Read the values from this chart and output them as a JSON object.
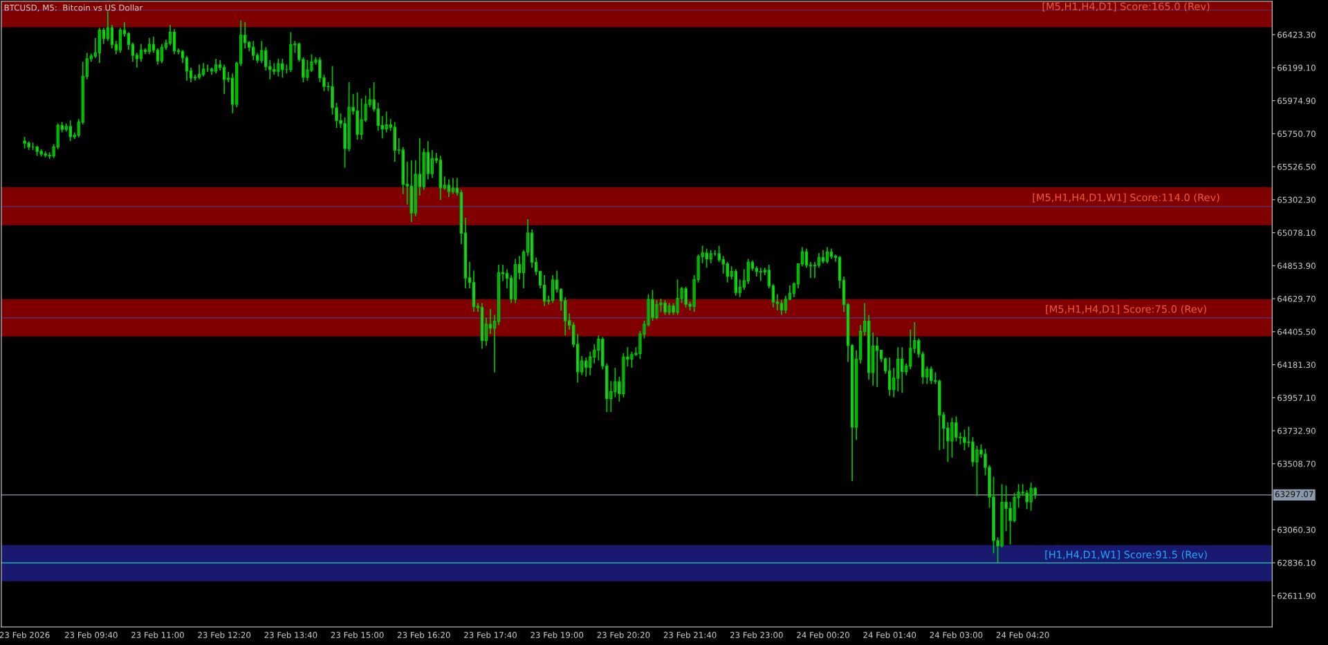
{
  "chart_data": {
    "type": "candlestick",
    "title": "BTCUSD, M5:  Bitcoin vs US Dollar",
    "x": [
      "2026-02-23T08:20",
      "2026-02-23T08:25",
      "2026-02-23T08:30",
      "2026-02-23T08:35",
      "2026-02-23T08:40",
      "2026-02-23T08:45",
      "2026-02-23T08:50",
      "2026-02-23T08:55",
      "2026-02-23T09:00",
      "2026-02-23T09:05",
      "2026-02-23T09:10",
      "2026-02-23T09:15",
      "2026-02-23T09:20",
      "2026-02-23T09:25",
      "2026-02-23T09:30",
      "2026-02-23T09:35",
      "2026-02-23T09:40",
      "2026-02-23T09:45",
      "2026-02-23T09:50",
      "2026-02-23T09:55",
      "2026-02-23T10:00",
      "2026-02-23T10:05",
      "2026-02-23T10:10",
      "2026-02-23T10:15",
      "2026-02-23T10:20",
      "2026-02-23T10:25",
      "2026-02-23T10:30",
      "2026-02-23T10:35",
      "2026-02-23T10:40",
      "2026-02-23T10:45",
      "2026-02-23T10:50",
      "2026-02-23T10:55",
      "2026-02-23T11:00",
      "2026-02-23T11:05",
      "2026-02-23T11:10",
      "2026-02-23T11:15",
      "2026-02-23T11:20",
      "2026-02-23T11:25",
      "2026-02-23T11:30",
      "2026-02-23T11:35",
      "2026-02-23T11:40",
      "2026-02-23T11:45",
      "2026-02-23T11:50",
      "2026-02-23T11:55",
      "2026-02-23T12:00",
      "2026-02-23T12:05",
      "2026-02-23T12:10",
      "2026-02-23T12:15",
      "2026-02-23T12:20",
      "2026-02-23T12:25",
      "2026-02-23T12:30",
      "2026-02-23T12:35",
      "2026-02-23T12:40",
      "2026-02-23T12:45",
      "2026-02-23T12:50",
      "2026-02-23T12:55",
      "2026-02-23T13:00",
      "2026-02-23T13:05",
      "2026-02-23T13:10",
      "2026-02-23T13:15",
      "2026-02-23T13:20",
      "2026-02-23T13:25",
      "2026-02-23T13:30",
      "2026-02-23T13:35",
      "2026-02-23T13:40",
      "2026-02-23T13:45",
      "2026-02-23T13:50",
      "2026-02-23T13:55",
      "2026-02-23T14:00",
      "2026-02-23T14:05",
      "2026-02-23T14:10",
      "2026-02-23T14:15",
      "2026-02-23T14:20",
      "2026-02-23T14:25",
      "2026-02-23T14:30",
      "2026-02-23T14:35",
      "2026-02-23T14:40",
      "2026-02-23T14:45",
      "2026-02-23T14:50",
      "2026-02-23T14:55",
      "2026-02-23T15:00",
      "2026-02-23T15:05",
      "2026-02-23T15:10",
      "2026-02-23T15:15",
      "2026-02-23T15:20",
      "2026-02-23T15:25",
      "2026-02-23T15:30",
      "2026-02-23T15:35",
      "2026-02-23T15:40",
      "2026-02-23T15:45",
      "2026-02-23T15:50",
      "2026-02-23T15:55",
      "2026-02-23T16:00",
      "2026-02-23T16:05",
      "2026-02-23T16:10",
      "2026-02-23T16:15",
      "2026-02-23T16:20",
      "2026-02-23T16:25",
      "2026-02-23T16:30",
      "2026-02-23T16:35",
      "2026-02-23T16:40",
      "2026-02-23T16:45",
      "2026-02-23T16:50",
      "2026-02-23T16:55",
      "2026-02-23T17:00",
      "2026-02-23T17:05",
      "2026-02-23T17:10",
      "2026-02-23T17:15",
      "2026-02-23T17:20",
      "2026-02-23T17:25",
      "2026-02-23T17:30",
      "2026-02-23T17:35",
      "2026-02-23T17:40",
      "2026-02-23T17:45",
      "2026-02-23T17:50",
      "2026-02-23T17:55",
      "2026-02-23T18:00",
      "2026-02-23T18:05",
      "2026-02-23T18:10",
      "2026-02-23T18:15",
      "2026-02-23T18:20",
      "2026-02-23T18:25",
      "2026-02-23T18:30",
      "2026-02-23T18:35",
      "2026-02-23T18:40",
      "2026-02-23T18:45",
      "2026-02-23T18:50",
      "2026-02-23T18:55",
      "2026-02-23T19:00",
      "2026-02-23T19:05",
      "2026-02-23T19:10",
      "2026-02-23T19:15",
      "2026-02-23T19:20",
      "2026-02-23T19:25",
      "2026-02-23T19:30",
      "2026-02-23T19:35",
      "2026-02-23T19:40",
      "2026-02-23T19:45",
      "2026-02-23T19:50",
      "2026-02-23T19:55",
      "2026-02-23T20:00",
      "2026-02-23T20:05",
      "2026-02-23T20:10",
      "2026-02-23T20:15",
      "2026-02-23T20:20",
      "2026-02-23T20:25",
      "2026-02-23T20:30",
      "2026-02-23T20:35",
      "2026-02-23T20:40",
      "2026-02-23T20:45",
      "2026-02-23T20:50",
      "2026-02-23T20:55",
      "2026-02-23T21:00",
      "2026-02-23T21:05",
      "2026-02-23T21:10",
      "2026-02-23T21:15",
      "2026-02-23T21:20",
      "2026-02-23T21:25",
      "2026-02-23T21:30",
      "2026-02-23T21:35",
      "2026-02-23T21:40",
      "2026-02-23T21:45",
      "2026-02-23T21:50",
      "2026-02-23T21:55",
      "2026-02-23T22:00",
      "2026-02-23T22:05",
      "2026-02-23T22:10",
      "2026-02-23T22:15",
      "2026-02-23T22:20",
      "2026-02-23T22:25",
      "2026-02-23T22:30",
      "2026-02-23T22:35",
      "2026-02-23T22:40",
      "2026-02-23T22:45",
      "2026-02-23T22:50",
      "2026-02-23T22:55",
      "2026-02-23T23:00",
      "2026-02-23T23:05",
      "2026-02-23T23:10",
      "2026-02-23T23:15",
      "2026-02-23T23:20",
      "2026-02-23T23:25",
      "2026-02-23T23:30",
      "2026-02-23T23:35",
      "2026-02-23T23:40",
      "2026-02-23T23:45",
      "2026-02-23T23:50",
      "2026-02-23T23:55",
      "2026-02-24T00:00",
      "2026-02-24T00:05",
      "2026-02-24T00:10",
      "2026-02-24T00:15",
      "2026-02-24T00:20",
      "2026-02-24T00:25",
      "2026-02-24T00:30",
      "2026-02-24T00:35",
      "2026-02-24T00:40",
      "2026-02-24T00:45",
      "2026-02-24T00:50",
      "2026-02-24T00:55",
      "2026-02-24T01:00",
      "2026-02-24T01:05",
      "2026-02-24T01:10",
      "2026-02-24T01:15",
      "2026-02-24T01:20",
      "2026-02-24T01:25",
      "2026-02-24T01:30",
      "2026-02-24T01:35",
      "2026-02-24T01:40",
      "2026-02-24T01:45",
      "2026-02-24T01:50",
      "2026-02-24T01:55",
      "2026-02-24T02:00",
      "2026-02-24T02:05",
      "2026-02-24T02:10",
      "2026-02-24T02:15",
      "2026-02-24T02:20",
      "2026-02-24T02:25",
      "2026-02-24T02:30",
      "2026-02-24T02:35",
      "2026-02-24T02:40",
      "2026-02-24T02:45",
      "2026-02-24T02:50",
      "2026-02-24T02:55",
      "2026-02-24T03:00",
      "2026-02-24T03:05",
      "2026-02-24T03:10",
      "2026-02-24T03:15",
      "2026-02-24T03:20",
      "2026-02-24T03:25",
      "2026-02-24T03:30",
      "2026-02-24T03:35",
      "2026-02-24T03:40",
      "2026-02-24T03:45",
      "2026-02-24T03:50",
      "2026-02-24T03:55",
      "2026-02-24T04:00",
      "2026-02-24T04:05",
      "2026-02-24T04:10",
      "2026-02-24T04:15",
      "2026-02-24T04:20",
      "2026-02-24T04:25",
      "2026-02-24T04:30",
      "2026-02-24T04:35"
    ],
    "series": [
      {
        "color": "#00c800",
        "ohlc": [
          [
            65700,
            65730,
            65650,
            65687
          ],
          [
            65687,
            65700,
            65640,
            65660
          ],
          [
            65660,
            65690,
            65640,
            65660
          ],
          [
            65660,
            65670,
            65600,
            65630
          ],
          [
            65630,
            65645,
            65595,
            65613
          ],
          [
            65613,
            65630,
            65590,
            65604
          ],
          [
            65604,
            65625,
            65580,
            65600
          ],
          [
            65600,
            65680,
            65585,
            65660
          ],
          [
            65660,
            65820,
            65645,
            65807
          ],
          [
            65807,
            65830,
            65760,
            65780
          ],
          [
            65780,
            65820,
            65765,
            65800
          ],
          [
            65800,
            65840,
            65700,
            65730
          ],
          [
            65730,
            65760,
            65715,
            65740
          ],
          [
            65740,
            65850,
            65725,
            65830
          ],
          [
            65830,
            66240,
            65815,
            66140
          ],
          [
            66140,
            66300,
            66120,
            66260
          ],
          [
            66260,
            66295,
            66240,
            66278
          ],
          [
            66278,
            66400,
            66265,
            66300
          ],
          [
            66300,
            66470,
            66230,
            66453
          ],
          [
            66453,
            66470,
            66360,
            66398
          ],
          [
            66398,
            66580,
            66380,
            66470
          ],
          [
            66470,
            66490,
            66330,
            66357
          ],
          [
            66357,
            66380,
            66290,
            66320
          ],
          [
            66320,
            66470,
            66300,
            66453
          ],
          [
            66453,
            66510,
            66410,
            66430
          ],
          [
            66430,
            66440,
            66320,
            66357
          ],
          [
            66357,
            66370,
            66240,
            66283
          ],
          [
            66283,
            66300,
            66200,
            66260
          ],
          [
            66260,
            66360,
            66240,
            66318
          ],
          [
            66318,
            66330,
            66290,
            66310
          ],
          [
            66310,
            66400,
            66290,
            66357
          ],
          [
            66357,
            66410,
            66300,
            66318
          ],
          [
            66318,
            66330,
            66220,
            66245
          ],
          [
            66245,
            66360,
            66230,
            66337
          ],
          [
            66337,
            66390,
            66320,
            66366
          ],
          [
            66366,
            66490,
            66350,
            66440
          ],
          [
            66440,
            66460,
            66290,
            66315
          ],
          [
            66315,
            66330,
            66290,
            66309
          ],
          [
            66309,
            66320,
            66230,
            66265
          ],
          [
            66265,
            66280,
            66110,
            66176
          ],
          [
            66176,
            66200,
            66100,
            66130
          ],
          [
            66130,
            66150,
            66110,
            66134
          ],
          [
            66134,
            66220,
            66120,
            66154
          ],
          [
            66154,
            66230,
            66140,
            66190
          ],
          [
            66190,
            66220,
            66170,
            66190
          ],
          [
            66190,
            66200,
            66150,
            66176
          ],
          [
            66176,
            66260,
            66160,
            66218
          ],
          [
            66218,
            66250,
            66180,
            66200
          ],
          [
            66200,
            66220,
            66020,
            66120
          ],
          [
            66120,
            66170,
            66100,
            66127
          ],
          [
            66127,
            66160,
            65890,
            65950
          ],
          [
            65950,
            66240,
            65930,
            66228
          ],
          [
            66228,
            66520,
            66210,
            66420
          ],
          [
            66420,
            66510,
            66330,
            66370
          ],
          [
            66370,
            66380,
            66310,
            66338
          ],
          [
            66338,
            66380,
            66250,
            66283
          ],
          [
            66283,
            66300,
            66230,
            66250
          ],
          [
            66250,
            66380,
            66230,
            66315
          ],
          [
            66315,
            66340,
            66180,
            66207
          ],
          [
            66207,
            66250,
            66120,
            66186
          ],
          [
            66186,
            66230,
            66150,
            66175
          ],
          [
            66175,
            66260,
            66140,
            66226
          ],
          [
            66226,
            66260,
            66130,
            66186
          ],
          [
            66186,
            66220,
            66160,
            66186
          ],
          [
            66186,
            66440,
            66170,
            66355
          ],
          [
            66355,
            66380,
            66300,
            66360
          ],
          [
            66360,
            66370,
            66240,
            66255
          ],
          [
            66255,
            66270,
            66100,
            66134
          ],
          [
            66134,
            66250,
            66110,
            66182
          ],
          [
            66182,
            66290,
            66170,
            66237
          ],
          [
            66237,
            66270,
            66220,
            66250
          ],
          [
            66250,
            66270,
            66100,
            66130
          ],
          [
            66130,
            66150,
            66040,
            66071
          ],
          [
            66071,
            66100,
            66040,
            66070
          ],
          [
            66070,
            66210,
            65880,
            65927
          ],
          [
            65927,
            65960,
            65790,
            65840
          ],
          [
            65840,
            65890,
            65790,
            65820
          ],
          [
            65820,
            65860,
            65520,
            65650
          ],
          [
            65650,
            66100,
            65630,
            65930
          ],
          [
            65930,
            66020,
            65880,
            65905
          ],
          [
            65905,
            66030,
            65710,
            65746
          ],
          [
            65746,
            65990,
            65710,
            65844
          ],
          [
            65844,
            66010,
            65830,
            65949
          ],
          [
            65949,
            66060,
            65930,
            65980
          ],
          [
            65980,
            66100,
            65900,
            65918
          ],
          [
            65918,
            65960,
            65770,
            65807
          ],
          [
            65807,
            65870,
            65720,
            65783
          ],
          [
            65783,
            65900,
            65760,
            65810
          ],
          [
            65810,
            65850,
            65770,
            65795
          ],
          [
            65795,
            65830,
            65560,
            65639
          ],
          [
            65639,
            65720,
            65610,
            65640
          ],
          [
            65640,
            65660,
            65340,
            65407
          ],
          [
            65407,
            65560,
            65270,
            65395
          ],
          [
            65395,
            65570,
            65150,
            65212
          ],
          [
            65212,
            65570,
            65190,
            65475
          ],
          [
            65475,
            65720,
            65330,
            65390
          ],
          [
            65390,
            65650,
            65370,
            65623
          ],
          [
            65623,
            65700,
            65440,
            65480
          ],
          [
            65480,
            65640,
            65450,
            65581
          ],
          [
            65581,
            65620,
            65550,
            65570
          ],
          [
            65570,
            65600,
            65300,
            65382
          ],
          [
            65382,
            65460,
            65370,
            65400
          ],
          [
            65400,
            65440,
            65320,
            65358
          ],
          [
            65358,
            65450,
            65340,
            65380
          ],
          [
            65380,
            65450,
            65330,
            65350
          ],
          [
            65350,
            65370,
            65000,
            65075
          ],
          [
            65075,
            65180,
            64700,
            64771
          ],
          [
            64771,
            64880,
            64700,
            64740
          ],
          [
            64740,
            64820,
            64540,
            64577
          ],
          [
            64577,
            64600,
            64540,
            64570
          ],
          [
            64570,
            64600,
            64290,
            64346
          ],
          [
            64346,
            64500,
            64310,
            64455
          ],
          [
            64455,
            64560,
            64390,
            64430
          ],
          [
            64430,
            64520,
            64130,
            64476
          ],
          [
            64476,
            64860,
            64450,
            64807
          ],
          [
            64807,
            64860,
            64750,
            64800
          ],
          [
            64800,
            64830,
            64700,
            64770
          ],
          [
            64770,
            64790,
            64600,
            64628
          ],
          [
            64628,
            64900,
            64600,
            64862
          ],
          [
            64862,
            64920,
            64760,
            64807
          ],
          [
            64807,
            64960,
            64700,
            64946
          ],
          [
            64946,
            65170,
            64920,
            65075
          ],
          [
            65075,
            65100,
            64840,
            64877
          ],
          [
            64877,
            64910,
            64790,
            64815
          ],
          [
            64815,
            64820,
            64700,
            64722
          ],
          [
            64722,
            64790,
            64580,
            64613
          ],
          [
            64613,
            64650,
            64590,
            64619
          ],
          [
            64619,
            64790,
            64600,
            64756
          ],
          [
            64756,
            64820,
            64670,
            64694
          ],
          [
            64694,
            64700,
            64550,
            64616
          ],
          [
            64616,
            64640,
            64380,
            64480
          ],
          [
            64480,
            64530,
            64420,
            64450
          ],
          [
            64450,
            64470,
            64300,
            64320
          ],
          [
            64320,
            64390,
            64060,
            64133
          ],
          [
            64133,
            64240,
            64110,
            64206
          ],
          [
            64206,
            64230,
            64100,
            64164
          ],
          [
            64164,
            64270,
            64110,
            64234
          ],
          [
            64234,
            64320,
            64190,
            64281
          ],
          [
            64281,
            64380,
            64210,
            64354
          ],
          [
            64354,
            64370,
            64150,
            64172
          ],
          [
            64172,
            64190,
            63860,
            63951
          ],
          [
            63951,
            64070,
            63860,
            63998
          ],
          [
            63998,
            64160,
            63960,
            64066
          ],
          [
            64066,
            64100,
            63930,
            63985
          ],
          [
            63985,
            64260,
            63960,
            64234
          ],
          [
            64234,
            64300,
            64170,
            64220
          ],
          [
            64220,
            64270,
            64160,
            64250
          ],
          [
            64250,
            64300,
            64240,
            64258
          ],
          [
            64258,
            64410,
            64220,
            64390
          ],
          [
            64390,
            64480,
            64360,
            64455
          ],
          [
            64455,
            64660,
            64440,
            64624
          ],
          [
            64624,
            64690,
            64480,
            64502
          ],
          [
            64502,
            64620,
            64490,
            64590
          ],
          [
            64590,
            64630,
            64540,
            64600
          ],
          [
            64600,
            64620,
            64520,
            64538
          ],
          [
            64538,
            64600,
            64520,
            64580
          ],
          [
            64580,
            64600,
            64520,
            64538
          ],
          [
            64538,
            64760,
            64520,
            64631
          ],
          [
            64631,
            64710,
            64600,
            64697
          ],
          [
            64697,
            64710,
            64570,
            64592
          ],
          [
            64592,
            64610,
            64550,
            64578
          ],
          [
            64578,
            64790,
            64540,
            64760
          ],
          [
            64760,
            64930,
            64740,
            64916
          ],
          [
            64916,
            64990,
            64870,
            64940
          ],
          [
            64940,
            64970,
            64840,
            64900
          ],
          [
            64900,
            64960,
            64870,
            64935
          ],
          [
            64935,
            64960,
            64920,
            64935
          ],
          [
            64935,
            64990,
            64880,
            64894
          ],
          [
            64894,
            64920,
            64800,
            64866
          ],
          [
            64866,
            64880,
            64740,
            64782
          ],
          [
            64782,
            64850,
            64760,
            64815
          ],
          [
            64815,
            64830,
            64650,
            64672
          ],
          [
            64672,
            64760,
            64640,
            64708
          ],
          [
            64708,
            64830,
            64690,
            64751
          ],
          [
            64751,
            64900,
            64730,
            64877
          ],
          [
            64877,
            64890,
            64820,
            64836
          ],
          [
            64836,
            64850,
            64780,
            64815
          ],
          [
            64815,
            64840,
            64750,
            64812
          ],
          [
            64812,
            64840,
            64790,
            64823
          ],
          [
            64823,
            64860,
            64700,
            64717
          ],
          [
            64717,
            64730,
            64570,
            64607
          ],
          [
            64607,
            64660,
            64550,
            64598
          ],
          [
            64598,
            64620,
            64520,
            64554
          ],
          [
            64554,
            64650,
            64530,
            64626
          ],
          [
            64626,
            64720,
            64620,
            64667
          ],
          [
            64667,
            64740,
            64640,
            64730
          ],
          [
            64730,
            64870,
            64700,
            64866
          ],
          [
            64866,
            64980,
            64850,
            64948
          ],
          [
            64948,
            64970,
            64840,
            64858
          ],
          [
            64858,
            64880,
            64770,
            64853
          ],
          [
            64853,
            64880,
            64770,
            64857
          ],
          [
            64857,
            64940,
            64840,
            64910
          ],
          [
            64910,
            64960,
            64870,
            64885
          ],
          [
            64885,
            64980,
            64870,
            64946
          ],
          [
            64946,
            64970,
            64900,
            64918
          ],
          [
            64918,
            64930,
            64880,
            64910
          ],
          [
            64910,
            64920,
            64700,
            64754
          ],
          [
            64754,
            64780,
            64540,
            64590
          ],
          [
            64590,
            64600,
            64200,
            64312
          ],
          [
            64312,
            64320,
            63390,
            63758
          ],
          [
            63758,
            64280,
            63670,
            64218
          ],
          [
            64218,
            64450,
            64190,
            64407
          ],
          [
            64407,
            64600,
            64380,
            64476
          ],
          [
            64476,
            64520,
            64080,
            64128
          ],
          [
            64128,
            64400,
            64040,
            64308
          ],
          [
            64308,
            64370,
            64030,
            64279
          ],
          [
            64279,
            64280,
            64200,
            64222
          ],
          [
            64222,
            64230,
            64120,
            64140
          ],
          [
            64140,
            64230,
            63970,
            64012
          ],
          [
            64012,
            64160,
            63960,
            64090
          ],
          [
            64090,
            64300,
            64000,
            64218
          ],
          [
            64218,
            64300,
            63990,
            64135
          ],
          [
            64135,
            64190,
            64110,
            64172
          ],
          [
            64172,
            64420,
            64150,
            64292
          ],
          [
            64292,
            64470,
            64260,
            64345
          ],
          [
            64345,
            64360,
            64230,
            64254
          ],
          [
            64254,
            64270,
            64050,
            64099
          ],
          [
            64099,
            64170,
            64050,
            64151
          ],
          [
            64151,
            64170,
            64050,
            64074
          ],
          [
            64074,
            64130,
            64050,
            64069
          ],
          [
            64069,
            64080,
            63600,
            63840
          ],
          [
            63840,
            63860,
            63610,
            63751
          ],
          [
            63751,
            63790,
            63520,
            63664
          ],
          [
            63664,
            63820,
            63550,
            63787
          ],
          [
            63787,
            63830,
            63660,
            63689
          ],
          [
            63689,
            63720,
            63640,
            63686
          ],
          [
            63686,
            63740,
            63600,
            63653
          ],
          [
            63653,
            63760,
            63620,
            63656
          ],
          [
            63656,
            63690,
            63490,
            63522
          ],
          [
            63522,
            63630,
            63290,
            63602
          ],
          [
            63602,
            63640,
            63550,
            63574
          ],
          [
            63574,
            63610,
            63430,
            63484
          ],
          [
            63484,
            63500,
            63210,
            63282
          ],
          [
            63282,
            63420,
            62900,
            62987
          ],
          [
            62987,
            63010,
            62837,
            62951
          ],
          [
            62951,
            63370,
            62940,
            63246
          ],
          [
            63246,
            63360,
            63050,
            63205
          ],
          [
            63205,
            63250,
            62960,
            63124
          ],
          [
            63124,
            63310,
            63110,
            63279
          ],
          [
            63279,
            63370,
            63210,
            63315
          ],
          [
            63315,
            63370,
            63290,
            63310
          ],
          [
            63310,
            63330,
            63200,
            63250
          ],
          [
            63250,
            63380,
            63190,
            63341
          ],
          [
            63341,
            63350,
            63270,
            63297
          ]
        ]
      }
    ],
    "xlim": [
      "2026-02-23T07:52",
      "2026-02-24T09:20"
    ],
    "xticks": [
      {
        "value": "2026-02-23T08:20",
        "label": "23 Feb 2026"
      },
      {
        "value": "2026-02-23T09:40",
        "label": "23 Feb 09:40"
      },
      {
        "value": "2026-02-23T11:00",
        "label": "23 Feb 11:00"
      },
      {
        "value": "2026-02-23T12:20",
        "label": "23 Feb 12:20"
      },
      {
        "value": "2026-02-23T13:40",
        "label": "23 Feb 13:40"
      },
      {
        "value": "2026-02-23T15:00",
        "label": "23 Feb 15:00"
      },
      {
        "value": "2026-02-23T16:20",
        "label": "23 Feb 16:20"
      },
      {
        "value": "2026-02-23T17:40",
        "label": "23 Feb 17:40"
      },
      {
        "value": "2026-02-23T19:00",
        "label": "23 Feb 19:00"
      },
      {
        "value": "2026-02-23T20:20",
        "label": "23 Feb 20:20"
      },
      {
        "value": "2026-02-23T21:40",
        "label": "23 Feb 21:40"
      },
      {
        "value": "2026-02-23T23:00",
        "label": "23 Feb 23:00"
      },
      {
        "value": "2026-02-24T00:20",
        "label": "24 Feb 00:20"
      },
      {
        "value": "2026-02-24T01:40",
        "label": "24 Feb 01:40"
      },
      {
        "value": "2026-02-24T03:00",
        "label": "24 Feb 03:00"
      },
      {
        "value": "2026-02-24T04:20",
        "label": "24 Feb 04:20"
      }
    ],
    "ylim": [
      62400,
      66650
    ],
    "yticks": [
      {
        "value": 66423.3,
        "label": "66423.30"
      },
      {
        "value": 66199.1,
        "label": "66199.10"
      },
      {
        "value": 65974.9,
        "label": "65974.90"
      },
      {
        "value": 65750.7,
        "label": "65750.70"
      },
      {
        "value": 65526.5,
        "label": "65526.50"
      },
      {
        "value": 65302.3,
        "label": "65302.30"
      },
      {
        "value": 65078.1,
        "label": "65078.10"
      },
      {
        "value": 64853.9,
        "label": "64853.90"
      },
      {
        "value": 64629.7,
        "label": "64629.70"
      },
      {
        "value": 64405.5,
        "label": "64405.50"
      },
      {
        "value": 64181.3,
        "label": "64181.30"
      },
      {
        "value": 63957.1,
        "label": "63957.10"
      },
      {
        "value": 63732.9,
        "label": "63732.90"
      },
      {
        "value": 63508.7,
        "label": "63508.70"
      },
      {
        "value": 63060.3,
        "label": "63060.30"
      },
      {
        "value": 62836.1,
        "label": "62836.10"
      },
      {
        "value": 62611.9,
        "label": "62611.90"
      }
    ],
    "bands": [
      {
        "axis": "y",
        "from": 66475,
        "to": 66650,
        "label": "[M5,H1,H4,D1] Score:165.0 (Rev)",
        "color": "#800000"
      },
      {
        "axis": "y",
        "from": 65129,
        "to": 65387,
        "label": "[M5,H1,H4,D1,W1] Score:114.0 (Rev)",
        "color": "#800000"
      },
      {
        "axis": "y",
        "from": 64374,
        "to": 64626,
        "label": "[M5,H1,H4,D1] Score:75.0 (Rev)",
        "color": "#800000"
      },
      {
        "axis": "y",
        "from": 62710,
        "to": 62956,
        "label": "[H1,H4,D1,W1] Score:91.5 (Rev)",
        "color": "#191970"
      }
    ],
    "ref_lines": [
      {
        "axis": "y",
        "value": 66590,
        "color": "#5a2a6a"
      },
      {
        "axis": "y",
        "value": 65256,
        "color": "#5a2a6a"
      },
      {
        "axis": "y",
        "value": 64500,
        "color": "#5a2a6a"
      },
      {
        "axis": "y",
        "value": 62835,
        "color": "#20b2aa"
      },
      {
        "axis": "y",
        "value": 63297.07,
        "label": "63297.07",
        "color": "#8a9aaa"
      }
    ],
    "grid": false
  }
}
